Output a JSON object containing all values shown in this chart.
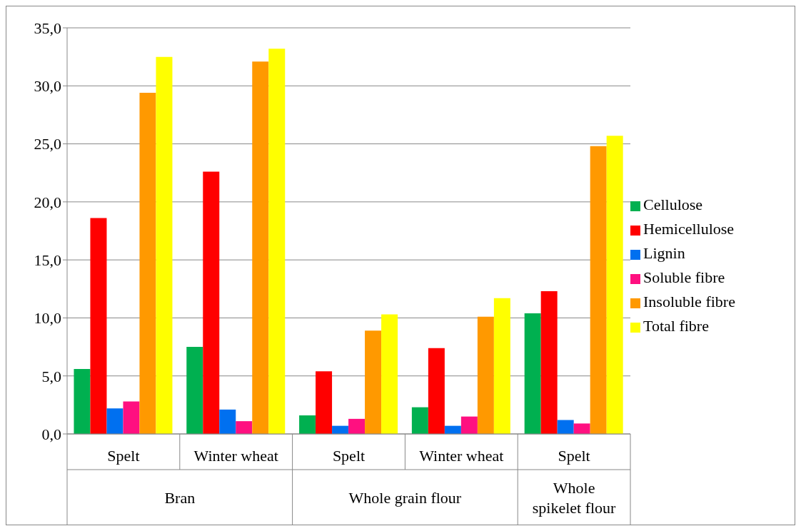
{
  "chart_data": {
    "type": "bar",
    "categories": [
      "Spelt",
      "Winter wheat",
      "Spelt",
      "Winter wheat",
      "Spelt"
    ],
    "series": [
      {
        "name": "Cellulose",
        "color": "#00b050",
        "values": [
          5.6,
          7.5,
          1.6,
          2.3,
          10.4
        ]
      },
      {
        "name": "Hemicellulose",
        "color": "#ff0000",
        "values": [
          18.6,
          22.6,
          5.4,
          7.4,
          12.3
        ]
      },
      {
        "name": "Lignin",
        "color": "#0070f0",
        "values": [
          2.2,
          2.1,
          0.7,
          0.7,
          1.2
        ]
      },
      {
        "name": "Soluble fibre",
        "color": "#ff1080",
        "values": [
          2.8,
          1.1,
          1.3,
          1.5,
          0.9
        ]
      },
      {
        "name": "Insoluble fibre",
        "color": "#ff9900",
        "values": [
          29.4,
          32.1,
          8.9,
          10.1,
          24.8
        ]
      },
      {
        "name": "Total fibre",
        "color": "#ffff00",
        "values": [
          32.5,
          33.2,
          10.3,
          11.7,
          25.7
        ]
      }
    ],
    "annotations": [
      "Bran",
      "Whole grain flour",
      "Whole spikelet flour"
    ],
    "ylim": [
      0,
      35
    ],
    "yticks": [
      {
        "value": 0,
        "label": "0,0"
      },
      {
        "value": 5,
        "label": "5,0"
      },
      {
        "value": 10,
        "label": "10,0"
      },
      {
        "value": 15,
        "label": "15,0"
      },
      {
        "value": 20,
        "label": "20,0"
      },
      {
        "value": 25,
        "label": "25,0"
      },
      {
        "value": 30,
        "label": "30,0"
      },
      {
        "value": 35,
        "label": "35,0"
      }
    ],
    "grid": "y",
    "legend": "right"
  }
}
